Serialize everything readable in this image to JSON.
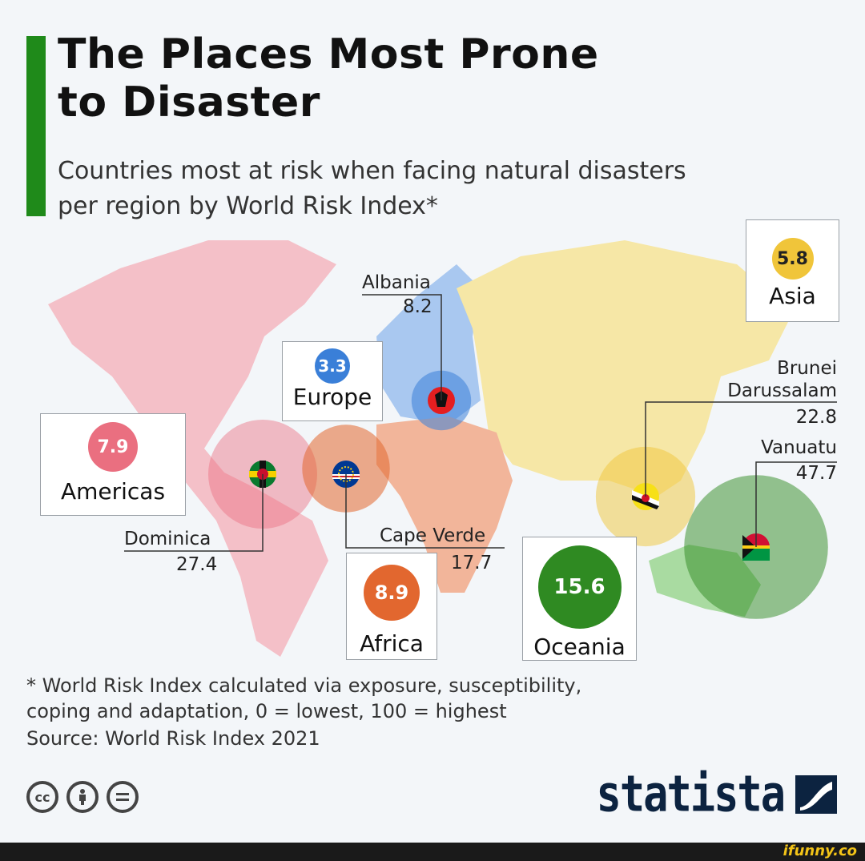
{
  "title": "The Places Most Prone\nto Disaster",
  "subtitle": "Countries most at risk when facing natural disasters\nper region by World Risk Index*",
  "chart_data": {
    "type": "bar",
    "categories": [
      "Americas",
      "Europe",
      "Africa",
      "Asia",
      "Oceania"
    ],
    "series": [
      {
        "values": [
          7.9,
          3.3,
          8.9,
          5.8,
          15.6
        ]
      }
    ],
    "countries": [
      {
        "region": "Americas",
        "country": "Dominica",
        "value": 27.4
      },
      {
        "region": "Europe",
        "country": "Albania",
        "value": 8.2
      },
      {
        "region": "Africa",
        "country": "Cape Verde",
        "value": 17.7
      },
      {
        "region": "Asia",
        "country": "Brunei Darussalam",
        "value": 22.8
      },
      {
        "region": "Oceania",
        "country": "Vanuatu",
        "value": 47.7
      }
    ],
    "title": "The Places Most Prone to Disaster",
    "xlabel": "",
    "ylabel": ""
  },
  "regions": [
    {
      "name": "Americas",
      "value": "7.9",
      "color": "#ea6f80"
    },
    {
      "name": "Europe",
      "value": "3.3",
      "color": "#3a7fd8"
    },
    {
      "name": "Africa",
      "value": "8.9",
      "color": "#e2672f"
    },
    {
      "name": "Asia",
      "value": "5.8",
      "color": "#f0c53a"
    },
    {
      "name": "Oceania",
      "value": "15.6",
      "color": "#2f8a22"
    }
  ],
  "countries": [
    {
      "name": "Dominica",
      "value": "27.4"
    },
    {
      "name": "Albania",
      "value": "8.2"
    },
    {
      "name": "Cape Verde",
      "value": "17.7"
    },
    {
      "name": "Brunei",
      "name2": "Darussalam",
      "value": "22.8"
    },
    {
      "name": "Vanuatu",
      "value": "47.7"
    }
  ],
  "footnote": "* World Risk Index calculated via exposure, susceptibility,\n   coping and adaptation, 0 = lowest, 100 = highest",
  "source": "Source: World Risk Index 2021",
  "license_icons": [
    "cc-icon",
    "attribution-icon",
    "no-derivatives-icon"
  ],
  "brand": "statista",
  "watermark": "ifunny.co"
}
